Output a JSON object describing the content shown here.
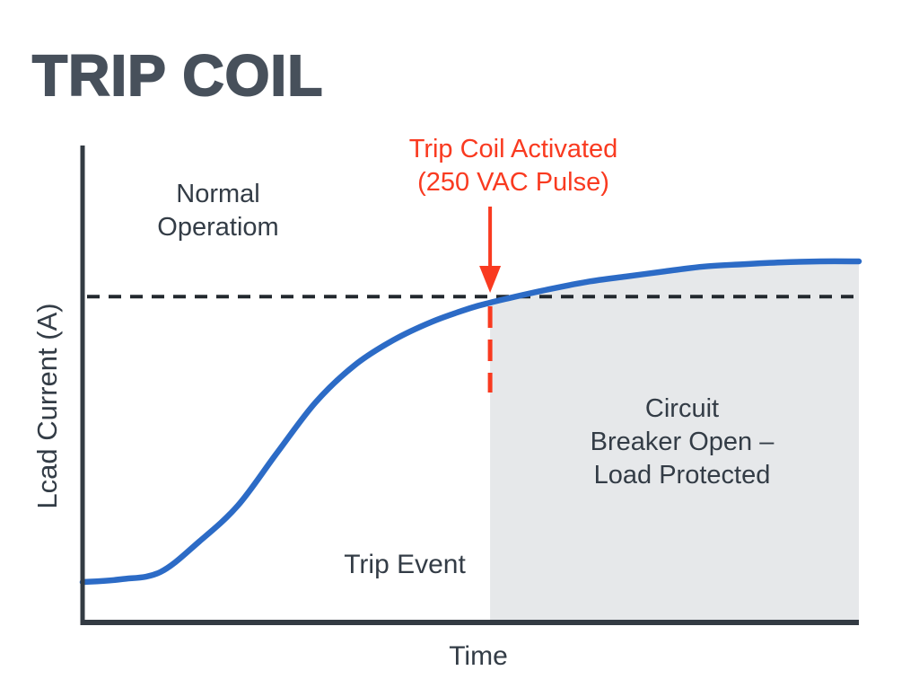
{
  "labels": {
    "title": "TRIP COIL",
    "normal_operation": "Normal\nOperatiom",
    "trip_annotation": "Trip Coil Activated\n(250 VAC Pulse)",
    "circuit_breaker": "Circuit\nBreaker Open –\nLoad Protected",
    "trip_event": "Trip Event",
    "xlabel": "Time",
    "ylabel": "Lcad Current (A)"
  },
  "colors": {
    "title_ink": "#47505B",
    "text_ink": "#333C46",
    "accent_red": "#F93A20",
    "curve_blue": "#2C6BC6",
    "shade_gray": "#E6E8EA",
    "axis_ink": "#333B43",
    "threshold_ink": "#22282E"
  },
  "chart_data": {
    "type": "line",
    "title": "TRIP COIL",
    "xlabel": "Time",
    "ylabel": "Lcad Current (A)",
    "grid": false,
    "legend": false,
    "value_units": "normalized 0-1 (axes show no tick values)",
    "threshold_y": 0.684,
    "trip_event_x": 0.525,
    "shaded_region": {
      "from_x": 0.525,
      "to_x": 1.0,
      "label": "Circuit\nBreaker Open –\nLoad Protected"
    },
    "series": [
      {
        "name": "load-current-curve",
        "x": [
          0,
          0.05,
          0.1,
          0.15,
          0.2,
          0.25,
          0.3,
          0.35,
          0.4,
          0.45,
          0.5,
          0.525,
          0.55,
          0.6,
          0.65,
          0.7,
          0.75,
          0.8,
          0.85,
          0.9,
          0.95,
          1.0
        ],
        "y": [
          0.083,
          0.089,
          0.104,
          0.168,
          0.244,
          0.354,
          0.461,
          0.539,
          0.592,
          0.631,
          0.66,
          0.671,
          0.681,
          0.699,
          0.715,
          0.726,
          0.737,
          0.747,
          0.752,
          0.756,
          0.758,
          0.758
        ]
      }
    ],
    "annotations": [
      {
        "text": "Normal\nOperatiom",
        "position": "upper-left",
        "color": "#333C46"
      },
      {
        "text": "Trip Coil Activated\n(250 VAC Pulse)",
        "position": "top-center, red arrow pointing down to trip point",
        "color": "#F93A20"
      },
      {
        "text": "Trip Event",
        "position": "lower-middle, left of shaded region",
        "color": "#333C46"
      },
      {
        "text": "Circuit\nBreaker Open –\nLoad Protected",
        "position": "inside shaded region",
        "color": "#333C46"
      }
    ]
  }
}
